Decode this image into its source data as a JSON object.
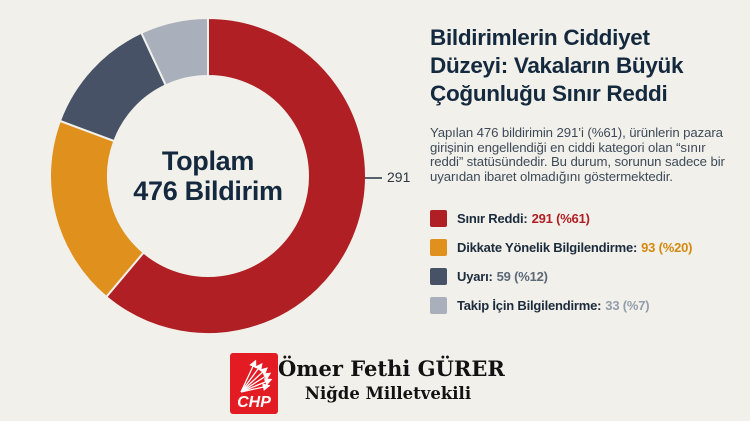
{
  "colors": {
    "background": "#f1f0ea",
    "title_navy": "#15293e",
    "body_gray": "#3e4a59",
    "callout_gray": "#2b3844",
    "chp_red": "#e31b22"
  },
  "chart_data": {
    "type": "pie",
    "subtype": "donut",
    "title": "Toplam 476 Bildirim",
    "categories": [
      "Sınır Reddi",
      "Dikkate Yönelik Bilgilendirme",
      "Uyarı",
      "Takip İçin Bilgilendirme"
    ],
    "values": [
      291,
      93,
      59,
      33
    ],
    "percent_labels": [
      "%61",
      "%20",
      "%12",
      "%7"
    ],
    "colors": [
      "#b01f24",
      "#e0911d",
      "#475267",
      "#a9b0bc"
    ],
    "total": 476,
    "start_angle": "top",
    "direction": "clockwise",
    "center_label": {
      "line1": "Toplam",
      "line2": "476 Bildirim"
    },
    "callout": {
      "value": "291",
      "segment": "Sınır Reddi"
    }
  },
  "right_panel": {
    "title": "Bildirimlerin Ciddiyet Düzeyi: Vakaların Büyük Çoğunluğu Sınır Reddi",
    "body": "Yapılan 476 bildirimin 291’i (%61), ürünlerin pazara girişinin engellendiği en ciddi kategori olan “sınır reddi” statüsündedir. Bu durum, sorunun sadece bir uyarıdan ibaret olmadığını göstermektedir.",
    "legend": {
      "items": [
        {
          "label": "Sınır Reddi:",
          "value": "291 (%61)",
          "swatch_color": "#b01f24",
          "value_color": "#b01f24"
        },
        {
          "label": "Dikkate Yönelik Bilgilendirme:",
          "value": "93 (%20)",
          "swatch_color": "#e0911d",
          "value_color": "#d4890f"
        },
        {
          "label": "Uyarı:",
          "value": "59 (%12)",
          "swatch_color": "#475267",
          "value_color": "#5c6878"
        },
        {
          "label": "Takip İçin Bilgilendirme:",
          "value": "33 (%7)",
          "swatch_color": "#a9b0bc",
          "value_color": "#939dab"
        }
      ]
    }
  },
  "footer": {
    "logo_text": "CHP",
    "logo_color": "#e31b22",
    "name": "Ömer Fethi GÜRER",
    "subtitle": "Niğde Milletvekili"
  }
}
